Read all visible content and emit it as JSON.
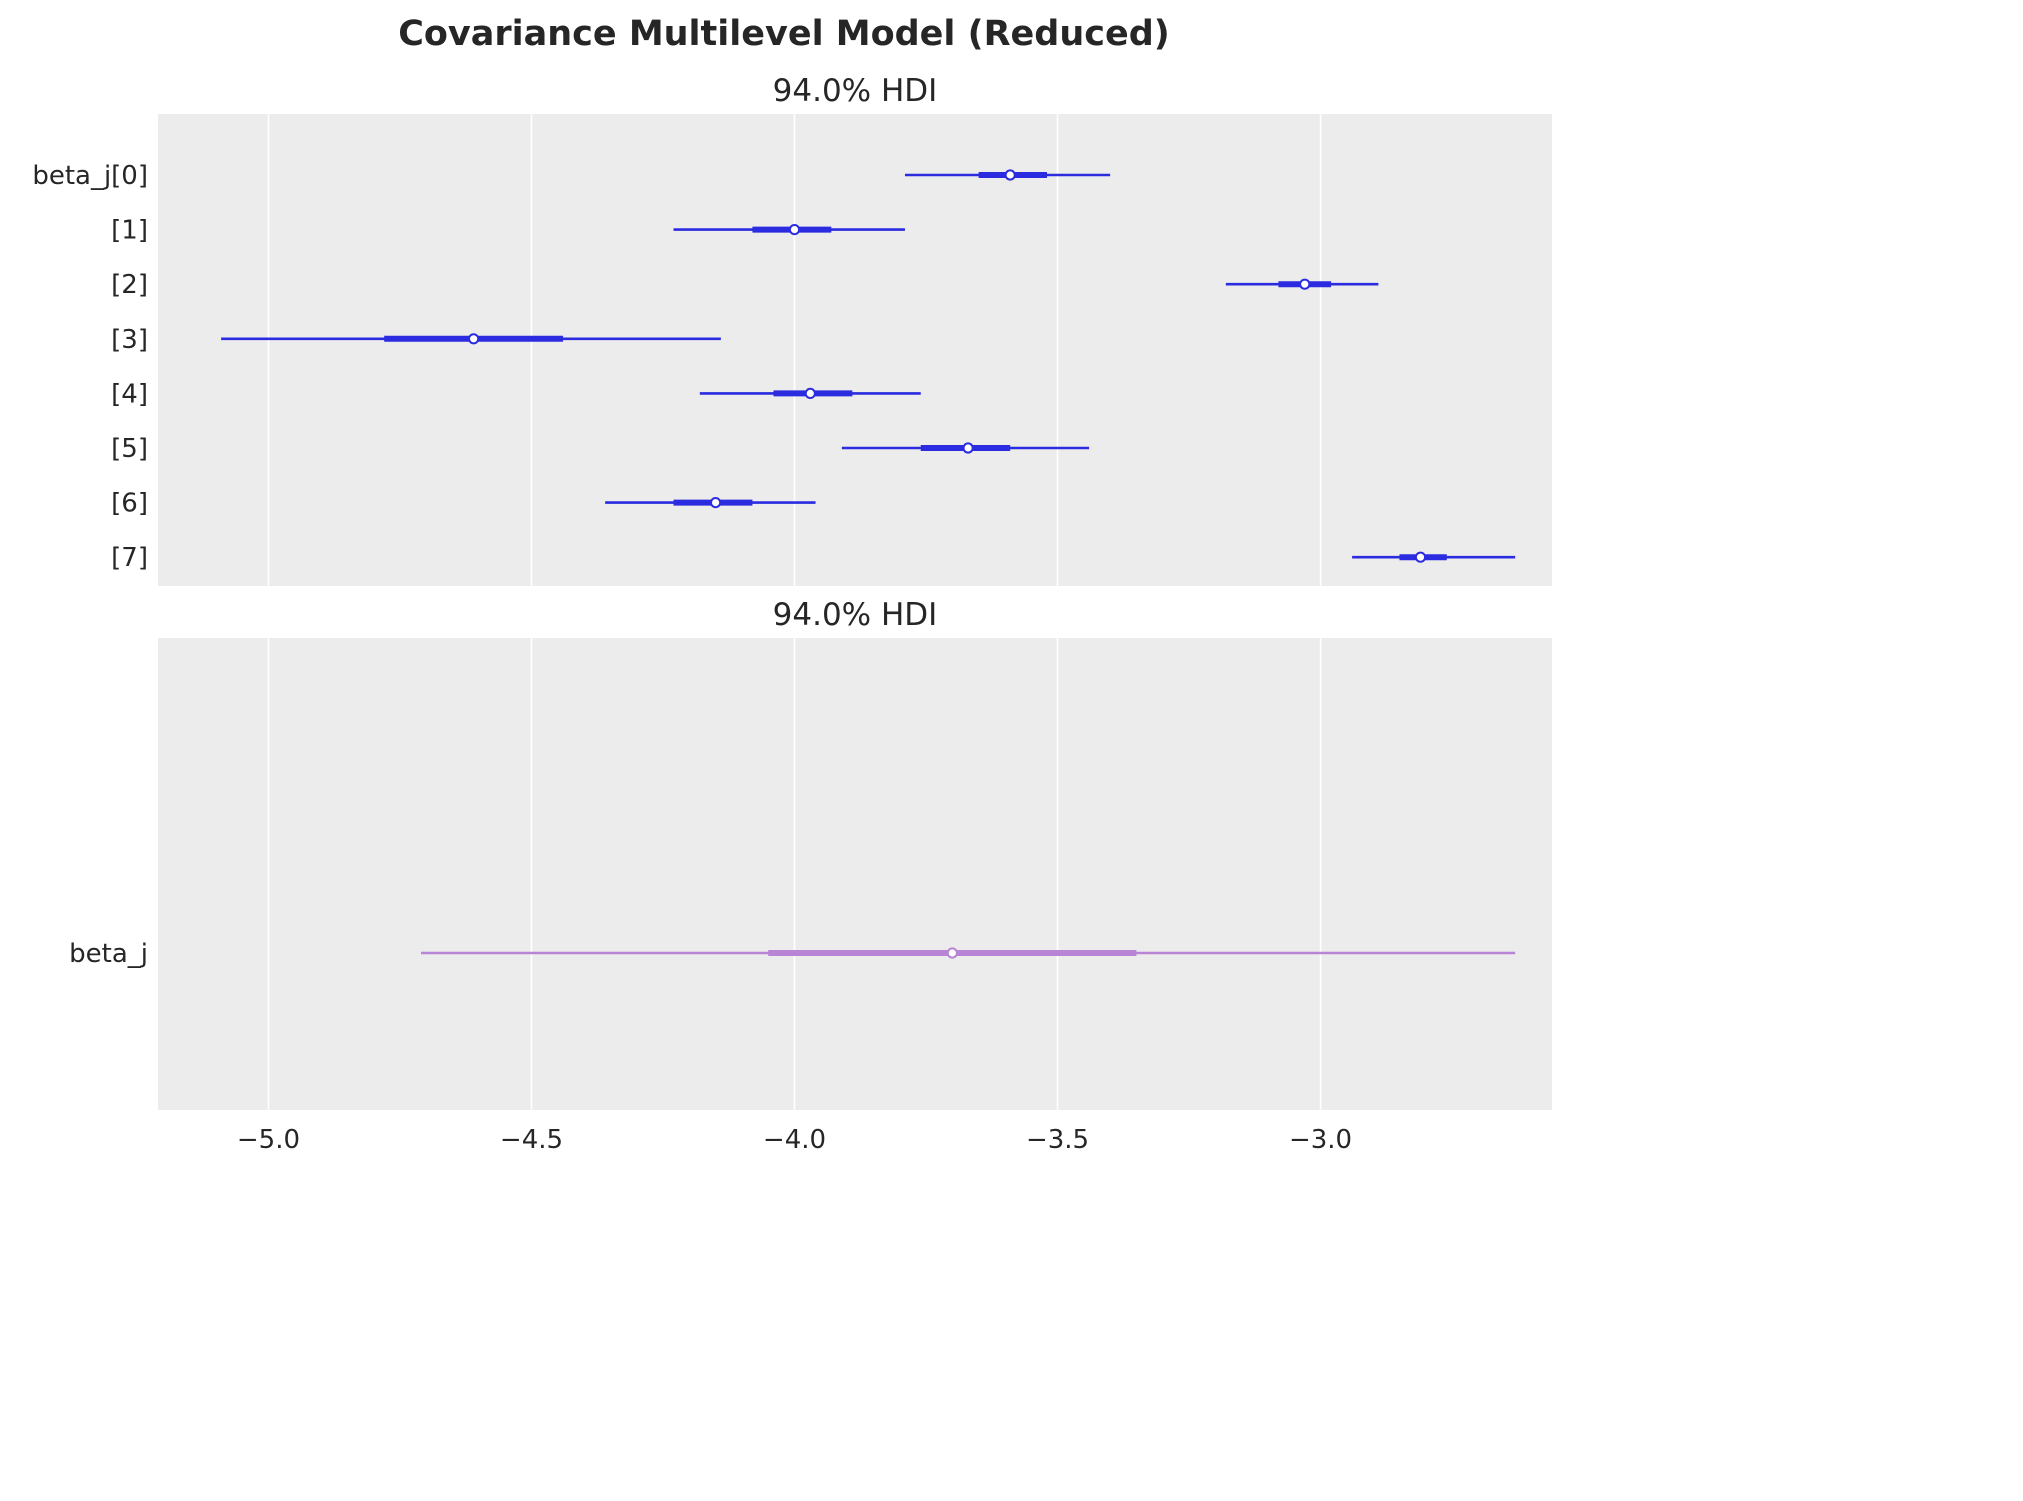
{
  "figure_title": "Covariance Multilevel Model (Reduced)",
  "colors": {
    "panel_background": "#ececec",
    "grid": "#ffffff",
    "series_top": "#2b2be0",
    "series_bottom": "#b884d6",
    "text": "#262626"
  },
  "chart_data": [
    {
      "type": "forest",
      "title": "94.0% HDI",
      "xlim": [
        -5.21,
        -2.56
      ],
      "grid": true,
      "xticks": [
        -5.0,
        -4.5,
        -4.0,
        -3.5,
        -3.0
      ],
      "xtick_labels": [
        "−5.0",
        "−4.5",
        "−4.0",
        "−3.5",
        "−3.0"
      ],
      "show_xtick_labels": false,
      "series_color": "#2b2be0",
      "rows": [
        {
          "label": "beta_j[0]",
          "hdi_low": -3.79,
          "q25": -3.65,
          "median": -3.59,
          "q75": -3.52,
          "hdi_high": -3.4
        },
        {
          "label": "[1]",
          "hdi_low": -4.23,
          "q25": -4.08,
          "median": -4.0,
          "q75": -3.93,
          "hdi_high": -3.79
        },
        {
          "label": "[2]",
          "hdi_low": -3.18,
          "q25": -3.08,
          "median": -3.03,
          "q75": -2.98,
          "hdi_high": -2.89
        },
        {
          "label": "[3]",
          "hdi_low": -5.09,
          "q25": -4.78,
          "median": -4.61,
          "q75": -4.44,
          "hdi_high": -4.14
        },
        {
          "label": "[4]",
          "hdi_low": -4.18,
          "q25": -4.04,
          "median": -3.97,
          "q75": -3.89,
          "hdi_high": -3.76
        },
        {
          "label": "[5]",
          "hdi_low": -3.91,
          "q25": -3.76,
          "median": -3.67,
          "q75": -3.59,
          "hdi_high": -3.44
        },
        {
          "label": "[6]",
          "hdi_low": -4.36,
          "q25": -4.23,
          "median": -4.15,
          "q75": -4.08,
          "hdi_high": -3.96
        },
        {
          "label": "[7]",
          "hdi_low": -2.94,
          "q25": -2.85,
          "median": -2.81,
          "q75": -2.76,
          "hdi_high": -2.63
        }
      ]
    },
    {
      "type": "forest",
      "title": "94.0% HDI",
      "xlim": [
        -5.21,
        -2.56
      ],
      "grid": true,
      "xticks": [
        -5.0,
        -4.5,
        -4.0,
        -3.5,
        -3.0
      ],
      "xtick_labels": [
        "−5.0",
        "−4.5",
        "−4.0",
        "−3.5",
        "−3.0"
      ],
      "show_xtick_labels": true,
      "series_color": "#b884d6",
      "rows": [
        {
          "label": "beta_j",
          "hdi_low": -4.71,
          "q25": -4.05,
          "median": -3.7,
          "q75": -3.35,
          "hdi_high": -2.63
        }
      ]
    }
  ]
}
